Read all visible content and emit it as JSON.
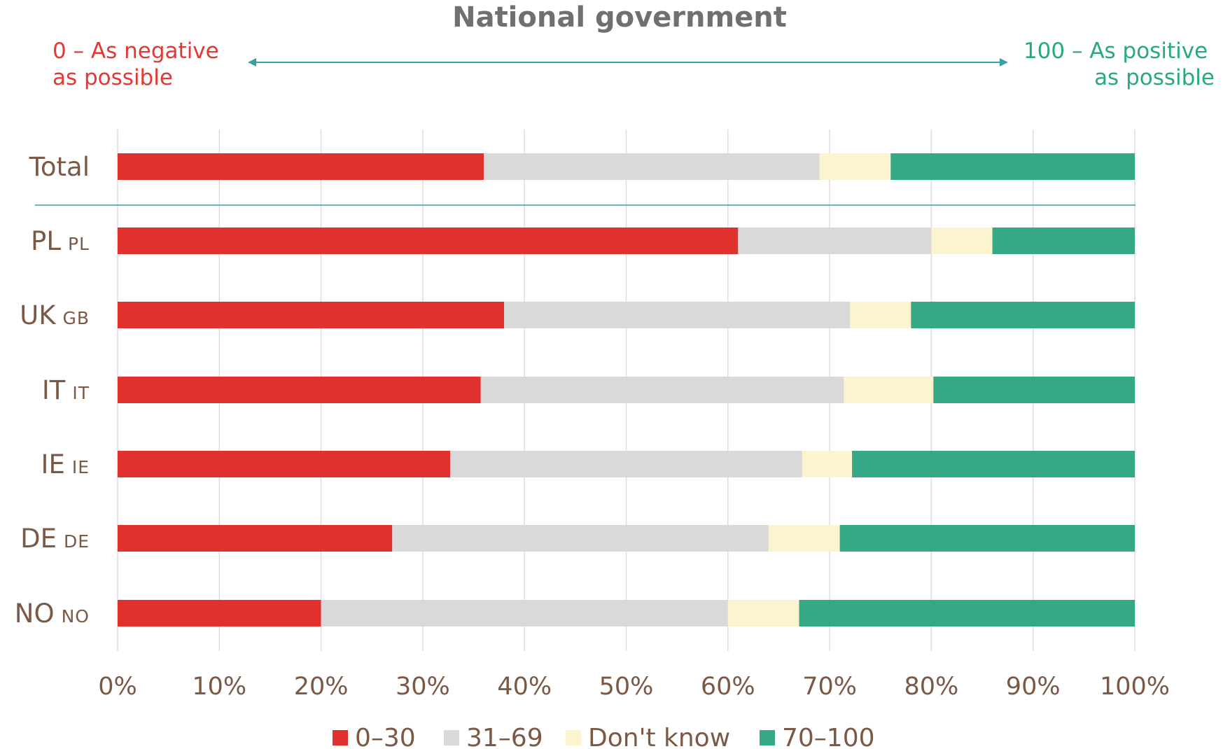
{
  "chart_data": {
    "type": "bar",
    "orientation": "horizontal",
    "stacked": true,
    "title": "National government",
    "scale_note": {
      "left": [
        "0 – As negative",
        "as possible"
      ],
      "right": [
        "100 – As positive",
        "as possible"
      ]
    },
    "categories": [
      {
        "label": "Total",
        "code": ""
      },
      {
        "label": "PL",
        "code": "PL"
      },
      {
        "label": "UK",
        "code": "GB"
      },
      {
        "label": "IT",
        "code": "IT"
      },
      {
        "label": "IE",
        "code": "IE"
      },
      {
        "label": "DE",
        "code": "DE"
      },
      {
        "label": "NO",
        "code": "NO"
      }
    ],
    "series": [
      {
        "name": "0–30",
        "color": "#e0312f",
        "values": [
          36,
          61,
          38,
          35.7,
          32.7,
          27,
          20
        ]
      },
      {
        "name": "31–69",
        "color": "#d9d9d9",
        "values": [
          33,
          19,
          34,
          35.7,
          34.6,
          37,
          40
        ]
      },
      {
        "name": "Don't know",
        "color": "#fcf3cf",
        "values": [
          7,
          6,
          6,
          8.8,
          4.9,
          7,
          7
        ]
      },
      {
        "name": "70–100",
        "color": "#35a986",
        "values": [
          24,
          14,
          22,
          19.8,
          27.8,
          29,
          33
        ]
      }
    ],
    "x_ticks": [
      "0%",
      "10%",
      "20%",
      "30%",
      "40%",
      "50%",
      "60%",
      "70%",
      "80%",
      "90%",
      "100%"
    ],
    "xlim": [
      0,
      100
    ],
    "grid": "vertical",
    "legend": "bottom-center",
    "colors": {
      "negative_text": "#e03a35",
      "positive_text": "#2aa883",
      "arrow": "#3aa0a8",
      "separator": "#3a9ea6"
    }
  }
}
